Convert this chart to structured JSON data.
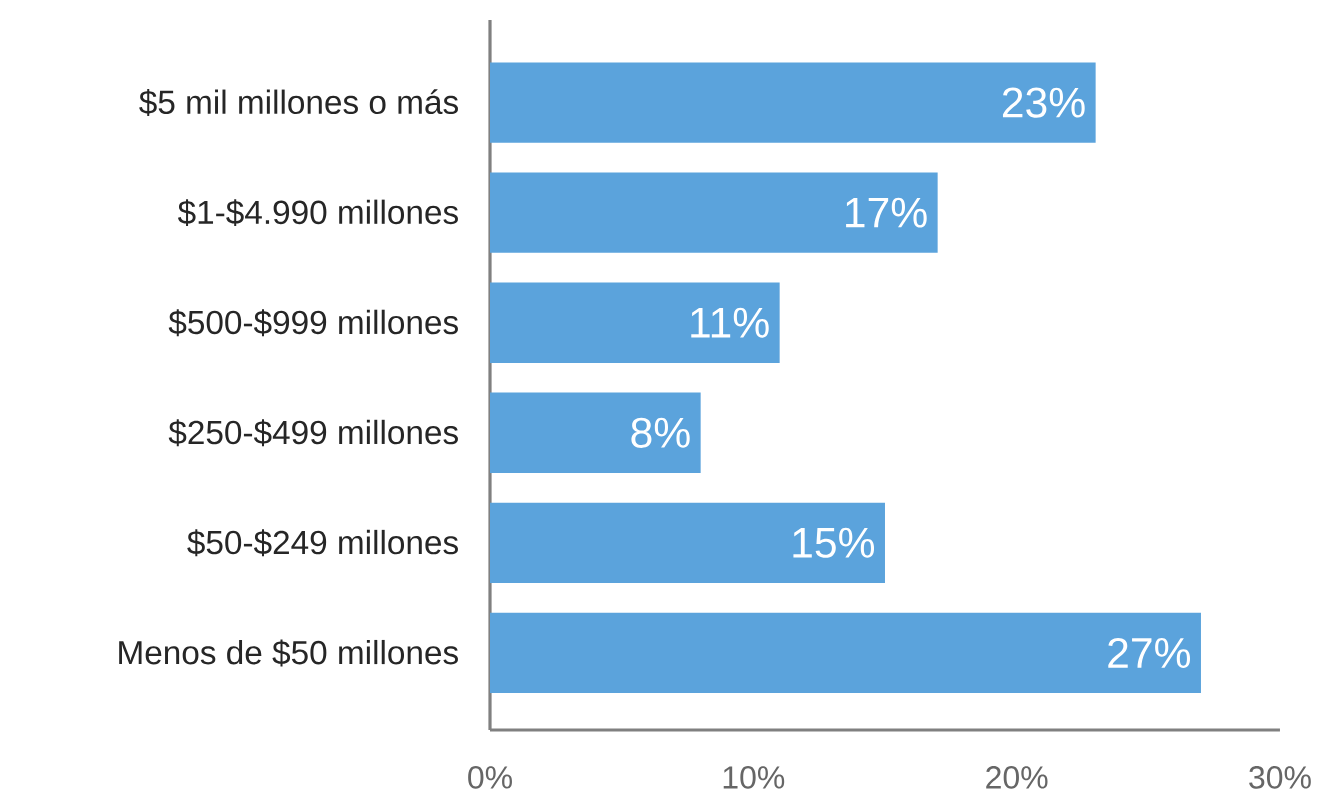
{
  "chart_data": {
    "type": "bar",
    "orientation": "horizontal",
    "categories": [
      "$5 mil millones o más",
      "$1-$4.990 millones",
      "$500-$999 millones",
      "$250-$499 millones",
      "$50-$249 millones",
      "Menos de $50 millones"
    ],
    "values": [
      23,
      17,
      11,
      8,
      15,
      27
    ],
    "value_labels": [
      "23%",
      "17%",
      "11%",
      "8%",
      "15%",
      "27%"
    ],
    "color": "#5ba3dc",
    "xlim": [
      0,
      30
    ],
    "xticks": [
      {
        "value": 0,
        "label": "0%"
      },
      {
        "value": 10,
        "label": "10%"
      },
      {
        "value": 20,
        "label": "20%"
      },
      {
        "value": 30,
        "label": "30%"
      }
    ],
    "grid": false
  }
}
